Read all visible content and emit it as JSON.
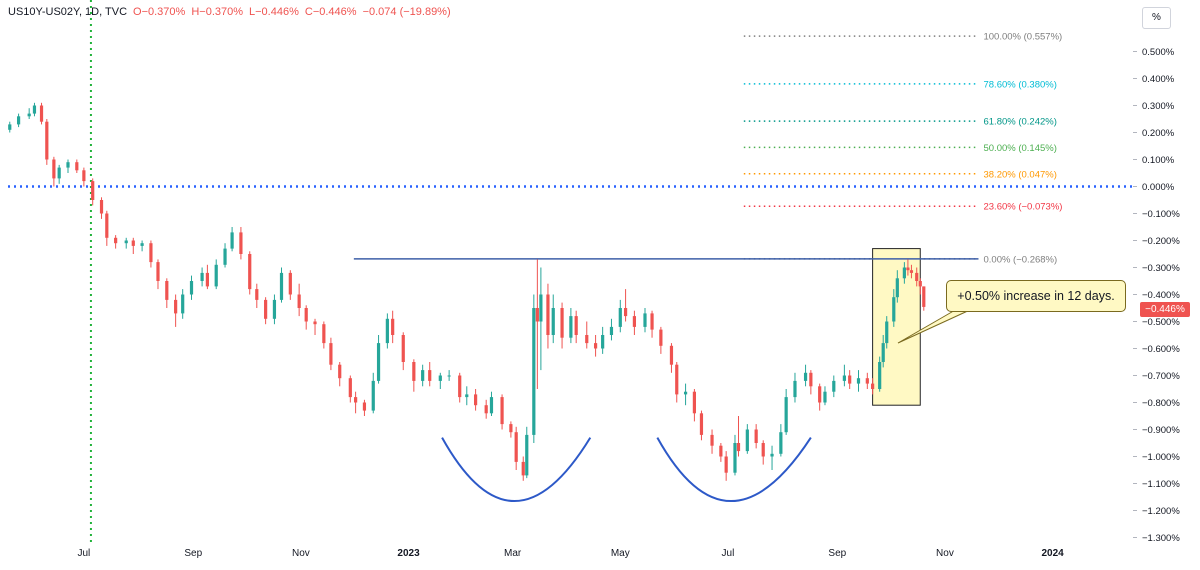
{
  "header": {
    "symbol": "US10Y-US02Y, 1D, TVC",
    "open": "O−0.370%",
    "high": "H−0.370%",
    "low": "L−0.446%",
    "close": "C−0.446%",
    "change": "−0.074 (−19.89%)"
  },
  "unit_label": "%",
  "annotation": "+0.50% increase in 12 days.",
  "last_price_label": "−0.446%",
  "colors": {
    "up": "#26a69a",
    "down": "#ef5350",
    "zero_line": "#2962ff",
    "resistance": "#3d5fa8",
    "pattern_arc": "#2d59c8",
    "highlight_fill": "#fff9c4",
    "vertical_marker": "#21b33a"
  },
  "chart_data": {
    "type": "candlestick",
    "y_unit": "%",
    "ylim": [
      -1.3,
      0.55
    ],
    "y_ticks": [
      "0.500%",
      "0.400%",
      "0.300%",
      "0.200%",
      "0.100%",
      "0.000%",
      "−0.100%",
      "−0.200%",
      "−0.300%",
      "−0.400%",
      "−0.500%",
      "−0.600%",
      "−0.700%",
      "−0.800%",
      "−0.900%",
      "−1.000%",
      "−1.100%",
      "−1.200%",
      "−1.300%"
    ],
    "y_tick_values": [
      0.5,
      0.4,
      0.3,
      0.2,
      0.1,
      0.0,
      -0.1,
      -0.2,
      -0.3,
      -0.4,
      -0.5,
      -0.6,
      -0.7,
      -0.8,
      -0.9,
      -1.0,
      -1.1,
      -1.2,
      -1.3
    ],
    "x_ticks": [
      "Jul",
      "Sep",
      "Nov",
      "2023",
      "Mar",
      "May",
      "Jul",
      "Sep",
      "Nov",
      "2024"
    ],
    "x_tick_dates": [
      "2022-07-01",
      "2022-09-01",
      "2022-11-01",
      "2023-01-01",
      "2023-03-01",
      "2023-05-01",
      "2023-07-01",
      "2023-09-01",
      "2023-11-01",
      "2024-01-01"
    ],
    "x_range": [
      "2022-05-19",
      "2024-02-15"
    ],
    "vertical_marker_date": "2022-07-05",
    "zero_line": 0.0,
    "resistance_line": {
      "value": -0.268,
      "from": "2022-12-01",
      "to": "2023-11-20"
    },
    "fib_levels": [
      {
        "label": "100.00% (0.557%)",
        "value": 0.557,
        "color": "#7e7e7e"
      },
      {
        "label": "78.60% (0.380%)",
        "value": 0.38,
        "color": "#00bcd4"
      },
      {
        "label": "61.80% (0.242%)",
        "value": 0.242,
        "color": "#009688"
      },
      {
        "label": "50.00% (0.145%)",
        "value": 0.145,
        "color": "#4caf50"
      },
      {
        "label": "38.20% (0.047%)",
        "value": 0.047,
        "color": "#ff9800"
      },
      {
        "label": "23.60% (−0.073%)",
        "value": -0.073,
        "color": "#f23645"
      },
      {
        "label": "0.00% (−0.268%)",
        "value": -0.268,
        "color": "#7e7e7e"
      }
    ],
    "fib_range": [
      "2023-07-10",
      "2023-11-20"
    ],
    "highlight_box": {
      "from": "2023-09-21",
      "to": "2023-10-18",
      "top": -0.23,
      "bottom": -0.81
    },
    "pattern_arcs": [
      {
        "from": "2023-01-20",
        "bottom_date": "2023-03-01",
        "to": "2023-04-14",
        "top": -0.93,
        "bottom": -1.165
      },
      {
        "from": "2023-05-22",
        "bottom_date": "2023-07-01",
        "to": "2023-08-17",
        "top": -0.93,
        "bottom": -1.165
      }
    ],
    "candles": [
      {
        "date": "2022-05-20",
        "o": 0.21,
        "h": 0.24,
        "l": 0.2,
        "c": 0.23
      },
      {
        "date": "2022-05-25",
        "o": 0.23,
        "h": 0.27,
        "l": 0.22,
        "c": 0.26
      },
      {
        "date": "2022-05-31",
        "o": 0.26,
        "h": 0.29,
        "l": 0.25,
        "c": 0.27
      },
      {
        "date": "2022-06-03",
        "o": 0.27,
        "h": 0.31,
        "l": 0.26,
        "c": 0.3
      },
      {
        "date": "2022-06-07",
        "o": 0.3,
        "h": 0.31,
        "l": 0.23,
        "c": 0.24
      },
      {
        "date": "2022-06-10",
        "o": 0.24,
        "h": 0.25,
        "l": 0.08,
        "c": 0.1
      },
      {
        "date": "2022-06-14",
        "o": 0.1,
        "h": 0.11,
        "l": 0.0,
        "c": 0.03
      },
      {
        "date": "2022-06-17",
        "o": 0.03,
        "h": 0.08,
        "l": 0.01,
        "c": 0.07
      },
      {
        "date": "2022-06-22",
        "o": 0.07,
        "h": 0.1,
        "l": 0.05,
        "c": 0.09
      },
      {
        "date": "2022-06-27",
        "o": 0.09,
        "h": 0.1,
        "l": 0.05,
        "c": 0.06
      },
      {
        "date": "2022-07-01",
        "o": 0.06,
        "h": 0.07,
        "l": 0.0,
        "c": 0.02
      },
      {
        "date": "2022-07-06",
        "o": 0.02,
        "h": 0.03,
        "l": -0.07,
        "c": -0.05
      },
      {
        "date": "2022-07-11",
        "o": -0.05,
        "h": -0.04,
        "l": -0.12,
        "c": -0.1
      },
      {
        "date": "2022-07-14",
        "o": -0.1,
        "h": -0.09,
        "l": -0.22,
        "c": -0.19
      },
      {
        "date": "2022-07-19",
        "o": -0.19,
        "h": -0.18,
        "l": -0.23,
        "c": -0.21
      },
      {
        "date": "2022-07-25",
        "o": -0.21,
        "h": -0.19,
        "l": -0.23,
        "c": -0.2
      },
      {
        "date": "2022-07-29",
        "o": -0.2,
        "h": -0.19,
        "l": -0.25,
        "c": -0.22
      },
      {
        "date": "2022-08-03",
        "o": -0.22,
        "h": -0.2,
        "l": -0.24,
        "c": -0.21
      },
      {
        "date": "2022-08-08",
        "o": -0.21,
        "h": -0.2,
        "l": -0.3,
        "c": -0.28
      },
      {
        "date": "2022-08-12",
        "o": -0.28,
        "h": -0.27,
        "l": -0.38,
        "c": -0.35
      },
      {
        "date": "2022-08-17",
        "o": -0.35,
        "h": -0.34,
        "l": -0.45,
        "c": -0.42
      },
      {
        "date": "2022-08-22",
        "o": -0.42,
        "h": -0.4,
        "l": -0.52,
        "c": -0.47
      },
      {
        "date": "2022-08-26",
        "o": -0.47,
        "h": -0.38,
        "l": -0.49,
        "c": -0.4
      },
      {
        "date": "2022-08-31",
        "o": -0.4,
        "h": -0.33,
        "l": -0.42,
        "c": -0.35
      },
      {
        "date": "2022-09-06",
        "o": -0.35,
        "h": -0.3,
        "l": -0.37,
        "c": -0.32
      },
      {
        "date": "2022-09-09",
        "o": -0.32,
        "h": -0.29,
        "l": -0.38,
        "c": -0.37
      },
      {
        "date": "2022-09-14",
        "o": -0.37,
        "h": -0.27,
        "l": -0.38,
        "c": -0.29
      },
      {
        "date": "2022-09-19",
        "o": -0.29,
        "h": -0.21,
        "l": -0.3,
        "c": -0.23
      },
      {
        "date": "2022-09-23",
        "o": -0.23,
        "h": -0.15,
        "l": -0.24,
        "c": -0.17
      },
      {
        "date": "2022-09-28",
        "o": -0.17,
        "h": -0.15,
        "l": -0.27,
        "c": -0.25
      },
      {
        "date": "2022-10-03",
        "o": -0.25,
        "h": -0.24,
        "l": -0.4,
        "c": -0.38
      },
      {
        "date": "2022-10-07",
        "o": -0.38,
        "h": -0.36,
        "l": -0.45,
        "c": -0.42
      },
      {
        "date": "2022-10-12",
        "o": -0.42,
        "h": -0.41,
        "l": -0.51,
        "c": -0.49
      },
      {
        "date": "2022-10-17",
        "o": -0.49,
        "h": -0.4,
        "l": -0.51,
        "c": -0.42
      },
      {
        "date": "2022-10-21",
        "o": -0.42,
        "h": -0.3,
        "l": -0.43,
        "c": -0.32
      },
      {
        "date": "2022-10-26",
        "o": -0.32,
        "h": -0.31,
        "l": -0.42,
        "c": -0.4
      },
      {
        "date": "2022-10-31",
        "o": -0.4,
        "h": -0.36,
        "l": -0.48,
        "c": -0.45
      },
      {
        "date": "2022-11-04",
        "o": -0.45,
        "h": -0.44,
        "l": -0.53,
        "c": -0.5
      },
      {
        "date": "2022-11-09",
        "o": -0.5,
        "h": -0.49,
        "l": -0.55,
        "c": -0.51
      },
      {
        "date": "2022-11-14",
        "o": -0.51,
        "h": -0.5,
        "l": -0.6,
        "c": -0.58
      },
      {
        "date": "2022-11-18",
        "o": -0.58,
        "h": -0.56,
        "l": -0.68,
        "c": -0.66
      },
      {
        "date": "2022-11-23",
        "o": -0.66,
        "h": -0.65,
        "l": -0.74,
        "c": -0.71
      },
      {
        "date": "2022-11-29",
        "o": -0.71,
        "h": -0.7,
        "l": -0.8,
        "c": -0.78
      },
      {
        "date": "2022-12-02",
        "o": -0.78,
        "h": -0.76,
        "l": -0.84,
        "c": -0.8
      },
      {
        "date": "2022-12-07",
        "o": -0.8,
        "h": -0.79,
        "l": -0.85,
        "c": -0.83
      },
      {
        "date": "2022-12-12",
        "o": -0.83,
        "h": -0.69,
        "l": -0.84,
        "c": -0.72
      },
      {
        "date": "2022-12-15",
        "o": -0.72,
        "h": -0.55,
        "l": -0.73,
        "c": -0.58
      },
      {
        "date": "2022-12-20",
        "o": -0.58,
        "h": -0.47,
        "l": -0.6,
        "c": -0.49
      },
      {
        "date": "2022-12-23",
        "o": -0.49,
        "h": -0.46,
        "l": -0.58,
        "c": -0.55
      },
      {
        "date": "2022-12-29",
        "o": -0.55,
        "h": -0.54,
        "l": -0.68,
        "c": -0.65
      },
      {
        "date": "2023-01-04",
        "o": -0.65,
        "h": -0.64,
        "l": -0.76,
        "c": -0.72
      },
      {
        "date": "2023-01-09",
        "o": -0.72,
        "h": -0.66,
        "l": -0.74,
        "c": -0.68
      },
      {
        "date": "2023-01-13",
        "o": -0.68,
        "h": -0.65,
        "l": -0.74,
        "c": -0.72
      },
      {
        "date": "2023-01-19",
        "o": -0.72,
        "h": -0.69,
        "l": -0.75,
        "c": -0.7
      },
      {
        "date": "2023-01-24",
        "o": -0.7,
        "h": -0.68,
        "l": -0.72,
        "c": -0.7
      },
      {
        "date": "2023-01-30",
        "o": -0.7,
        "h": -0.69,
        "l": -0.8,
        "c": -0.78
      },
      {
        "date": "2023-02-03",
        "o": -0.78,
        "h": -0.74,
        "l": -0.81,
        "c": -0.77
      },
      {
        "date": "2023-02-08",
        "o": -0.77,
        "h": -0.75,
        "l": -0.83,
        "c": -0.81
      },
      {
        "date": "2023-02-14",
        "o": -0.81,
        "h": -0.79,
        "l": -0.86,
        "c": -0.84
      },
      {
        "date": "2023-02-17",
        "o": -0.84,
        "h": -0.76,
        "l": -0.85,
        "c": -0.78
      },
      {
        "date": "2023-02-23",
        "o": -0.78,
        "h": -0.77,
        "l": -0.9,
        "c": -0.88
      },
      {
        "date": "2023-02-28",
        "o": -0.88,
        "h": -0.87,
        "l": -0.93,
        "c": -0.91
      },
      {
        "date": "2023-03-03",
        "o": -0.91,
        "h": -0.89,
        "l": -1.05,
        "c": -1.02
      },
      {
        "date": "2023-03-07",
        "o": -1.02,
        "h": -1.0,
        "l": -1.09,
        "c": -1.07
      },
      {
        "date": "2023-03-09",
        "o": -1.07,
        "h": -0.89,
        "l": -1.08,
        "c": -0.92
      },
      {
        "date": "2023-03-13",
        "o": -0.92,
        "h": -0.4,
        "l": -0.95,
        "c": -0.45
      },
      {
        "date": "2023-03-15",
        "o": -0.45,
        "h": -0.27,
        "l": -0.75,
        "c": -0.5
      },
      {
        "date": "2023-03-17",
        "o": -0.5,
        "h": -0.3,
        "l": -0.68,
        "c": -0.4
      },
      {
        "date": "2023-03-21",
        "o": -0.4,
        "h": -0.36,
        "l": -0.6,
        "c": -0.55
      },
      {
        "date": "2023-03-24",
        "o": -0.55,
        "h": -0.4,
        "l": -0.58,
        "c": -0.45
      },
      {
        "date": "2023-03-29",
        "o": -0.45,
        "h": -0.43,
        "l": -0.6,
        "c": -0.56
      },
      {
        "date": "2023-04-03",
        "o": -0.56,
        "h": -0.45,
        "l": -0.58,
        "c": -0.48
      },
      {
        "date": "2023-04-06",
        "o": -0.48,
        "h": -0.46,
        "l": -0.58,
        "c": -0.55
      },
      {
        "date": "2023-04-12",
        "o": -0.55,
        "h": -0.5,
        "l": -0.6,
        "c": -0.58
      },
      {
        "date": "2023-04-17",
        "o": -0.58,
        "h": -0.55,
        "l": -0.63,
        "c": -0.6
      },
      {
        "date": "2023-04-21",
        "o": -0.6,
        "h": -0.52,
        "l": -0.62,
        "c": -0.55
      },
      {
        "date": "2023-04-26",
        "o": -0.55,
        "h": -0.49,
        "l": -0.57,
        "c": -0.52
      },
      {
        "date": "2023-05-01",
        "o": -0.52,
        "h": -0.42,
        "l": -0.54,
        "c": -0.45
      },
      {
        "date": "2023-05-04",
        "o": -0.45,
        "h": -0.38,
        "l": -0.5,
        "c": -0.48
      },
      {
        "date": "2023-05-09",
        "o": -0.48,
        "h": -0.46,
        "l": -0.55,
        "c": -0.52
      },
      {
        "date": "2023-05-15",
        "o": -0.52,
        "h": -0.45,
        "l": -0.54,
        "c": -0.47
      },
      {
        "date": "2023-05-19",
        "o": -0.47,
        "h": -0.46,
        "l": -0.56,
        "c": -0.53
      },
      {
        "date": "2023-05-24",
        "o": -0.53,
        "h": -0.52,
        "l": -0.62,
        "c": -0.59
      },
      {
        "date": "2023-05-30",
        "o": -0.59,
        "h": -0.58,
        "l": -0.69,
        "c": -0.66
      },
      {
        "date": "2023-06-02",
        "o": -0.66,
        "h": -0.65,
        "l": -0.8,
        "c": -0.77
      },
      {
        "date": "2023-06-07",
        "o": -0.77,
        "h": -0.73,
        "l": -0.81,
        "c": -0.76
      },
      {
        "date": "2023-06-12",
        "o": -0.76,
        "h": -0.75,
        "l": -0.87,
        "c": -0.84
      },
      {
        "date": "2023-06-16",
        "o": -0.84,
        "h": -0.83,
        "l": -0.94,
        "c": -0.92
      },
      {
        "date": "2023-06-22",
        "o": -0.92,
        "h": -0.9,
        "l": -0.99,
        "c": -0.96
      },
      {
        "date": "2023-06-27",
        "o": -0.96,
        "h": -0.95,
        "l": -1.02,
        "c": -1.0
      },
      {
        "date": "2023-06-30",
        "o": -1.0,
        "h": -0.98,
        "l": -1.09,
        "c": -1.06
      },
      {
        "date": "2023-07-05",
        "o": -1.06,
        "h": -0.92,
        "l": -1.07,
        "c": -0.95
      },
      {
        "date": "2023-07-07",
        "o": -0.95,
        "h": -0.85,
        "l": -1.0,
        "c": -0.98
      },
      {
        "date": "2023-07-12",
        "o": -0.98,
        "h": -0.88,
        "l": -0.99,
        "c": -0.9
      },
      {
        "date": "2023-07-17",
        "o": -0.9,
        "h": -0.88,
        "l": -0.97,
        "c": -0.95
      },
      {
        "date": "2023-07-21",
        "o": -0.95,
        "h": -0.94,
        "l": -1.03,
        "c": -1.0
      },
      {
        "date": "2023-07-26",
        "o": -1.0,
        "h": -0.96,
        "l": -1.05,
        "c": -0.99
      },
      {
        "date": "2023-07-31",
        "o": -0.99,
        "h": -0.88,
        "l": -1.0,
        "c": -0.91
      },
      {
        "date": "2023-08-03",
        "o": -0.91,
        "h": -0.75,
        "l": -0.92,
        "c": -0.78
      },
      {
        "date": "2023-08-08",
        "o": -0.78,
        "h": -0.69,
        "l": -0.8,
        "c": -0.72
      },
      {
        "date": "2023-08-14",
        "o": -0.72,
        "h": -0.66,
        "l": -0.74,
        "c": -0.69
      },
      {
        "date": "2023-08-17",
        "o": -0.69,
        "h": -0.68,
        "l": -0.77,
        "c": -0.74
      },
      {
        "date": "2023-08-22",
        "o": -0.74,
        "h": -0.73,
        "l": -0.83,
        "c": -0.8
      },
      {
        "date": "2023-08-25",
        "o": -0.8,
        "h": -0.74,
        "l": -0.81,
        "c": -0.76
      },
      {
        "date": "2023-08-30",
        "o": -0.76,
        "h": -0.7,
        "l": -0.78,
        "c": -0.72
      },
      {
        "date": "2023-09-05",
        "o": -0.72,
        "h": -0.66,
        "l": -0.74,
        "c": -0.7
      },
      {
        "date": "2023-09-08",
        "o": -0.7,
        "h": -0.68,
        "l": -0.75,
        "c": -0.73
      },
      {
        "date": "2023-09-13",
        "o": -0.73,
        "h": -0.68,
        "l": -0.76,
        "c": -0.71
      },
      {
        "date": "2023-09-18",
        "o": -0.71,
        "h": -0.69,
        "l": -0.75,
        "c": -0.73
      },
      {
        "date": "2023-09-21",
        "o": -0.73,
        "h": -0.71,
        "l": -0.77,
        "c": -0.75
      },
      {
        "date": "2023-09-25",
        "o": -0.75,
        "h": -0.63,
        "l": -0.76,
        "c": -0.65
      },
      {
        "date": "2023-09-27",
        "o": -0.65,
        "h": -0.55,
        "l": -0.67,
        "c": -0.58
      },
      {
        "date": "2023-09-29",
        "o": -0.58,
        "h": -0.48,
        "l": -0.6,
        "c": -0.5
      },
      {
        "date": "2023-10-03",
        "o": -0.5,
        "h": -0.38,
        "l": -0.52,
        "c": -0.41
      },
      {
        "date": "2023-10-05",
        "o": -0.41,
        "h": -0.31,
        "l": -0.43,
        "c": -0.34
      },
      {
        "date": "2023-10-09",
        "o": -0.34,
        "h": -0.28,
        "l": -0.36,
        "c": -0.3
      },
      {
        "date": "2023-10-11",
        "o": -0.3,
        "h": -0.27,
        "l": -0.33,
        "c": -0.31
      },
      {
        "date": "2023-10-13",
        "o": -0.31,
        "h": -0.29,
        "l": -0.34,
        "c": -0.32
      },
      {
        "date": "2023-10-16",
        "o": -0.32,
        "h": -0.3,
        "l": -0.37,
        "c": -0.35
      },
      {
        "date": "2023-10-18",
        "o": -0.35,
        "h": -0.34,
        "l": -0.4,
        "c": -0.37
      },
      {
        "date": "2023-10-20",
        "o": -0.37,
        "h": -0.37,
        "l": -0.46,
        "c": -0.446
      }
    ]
  }
}
